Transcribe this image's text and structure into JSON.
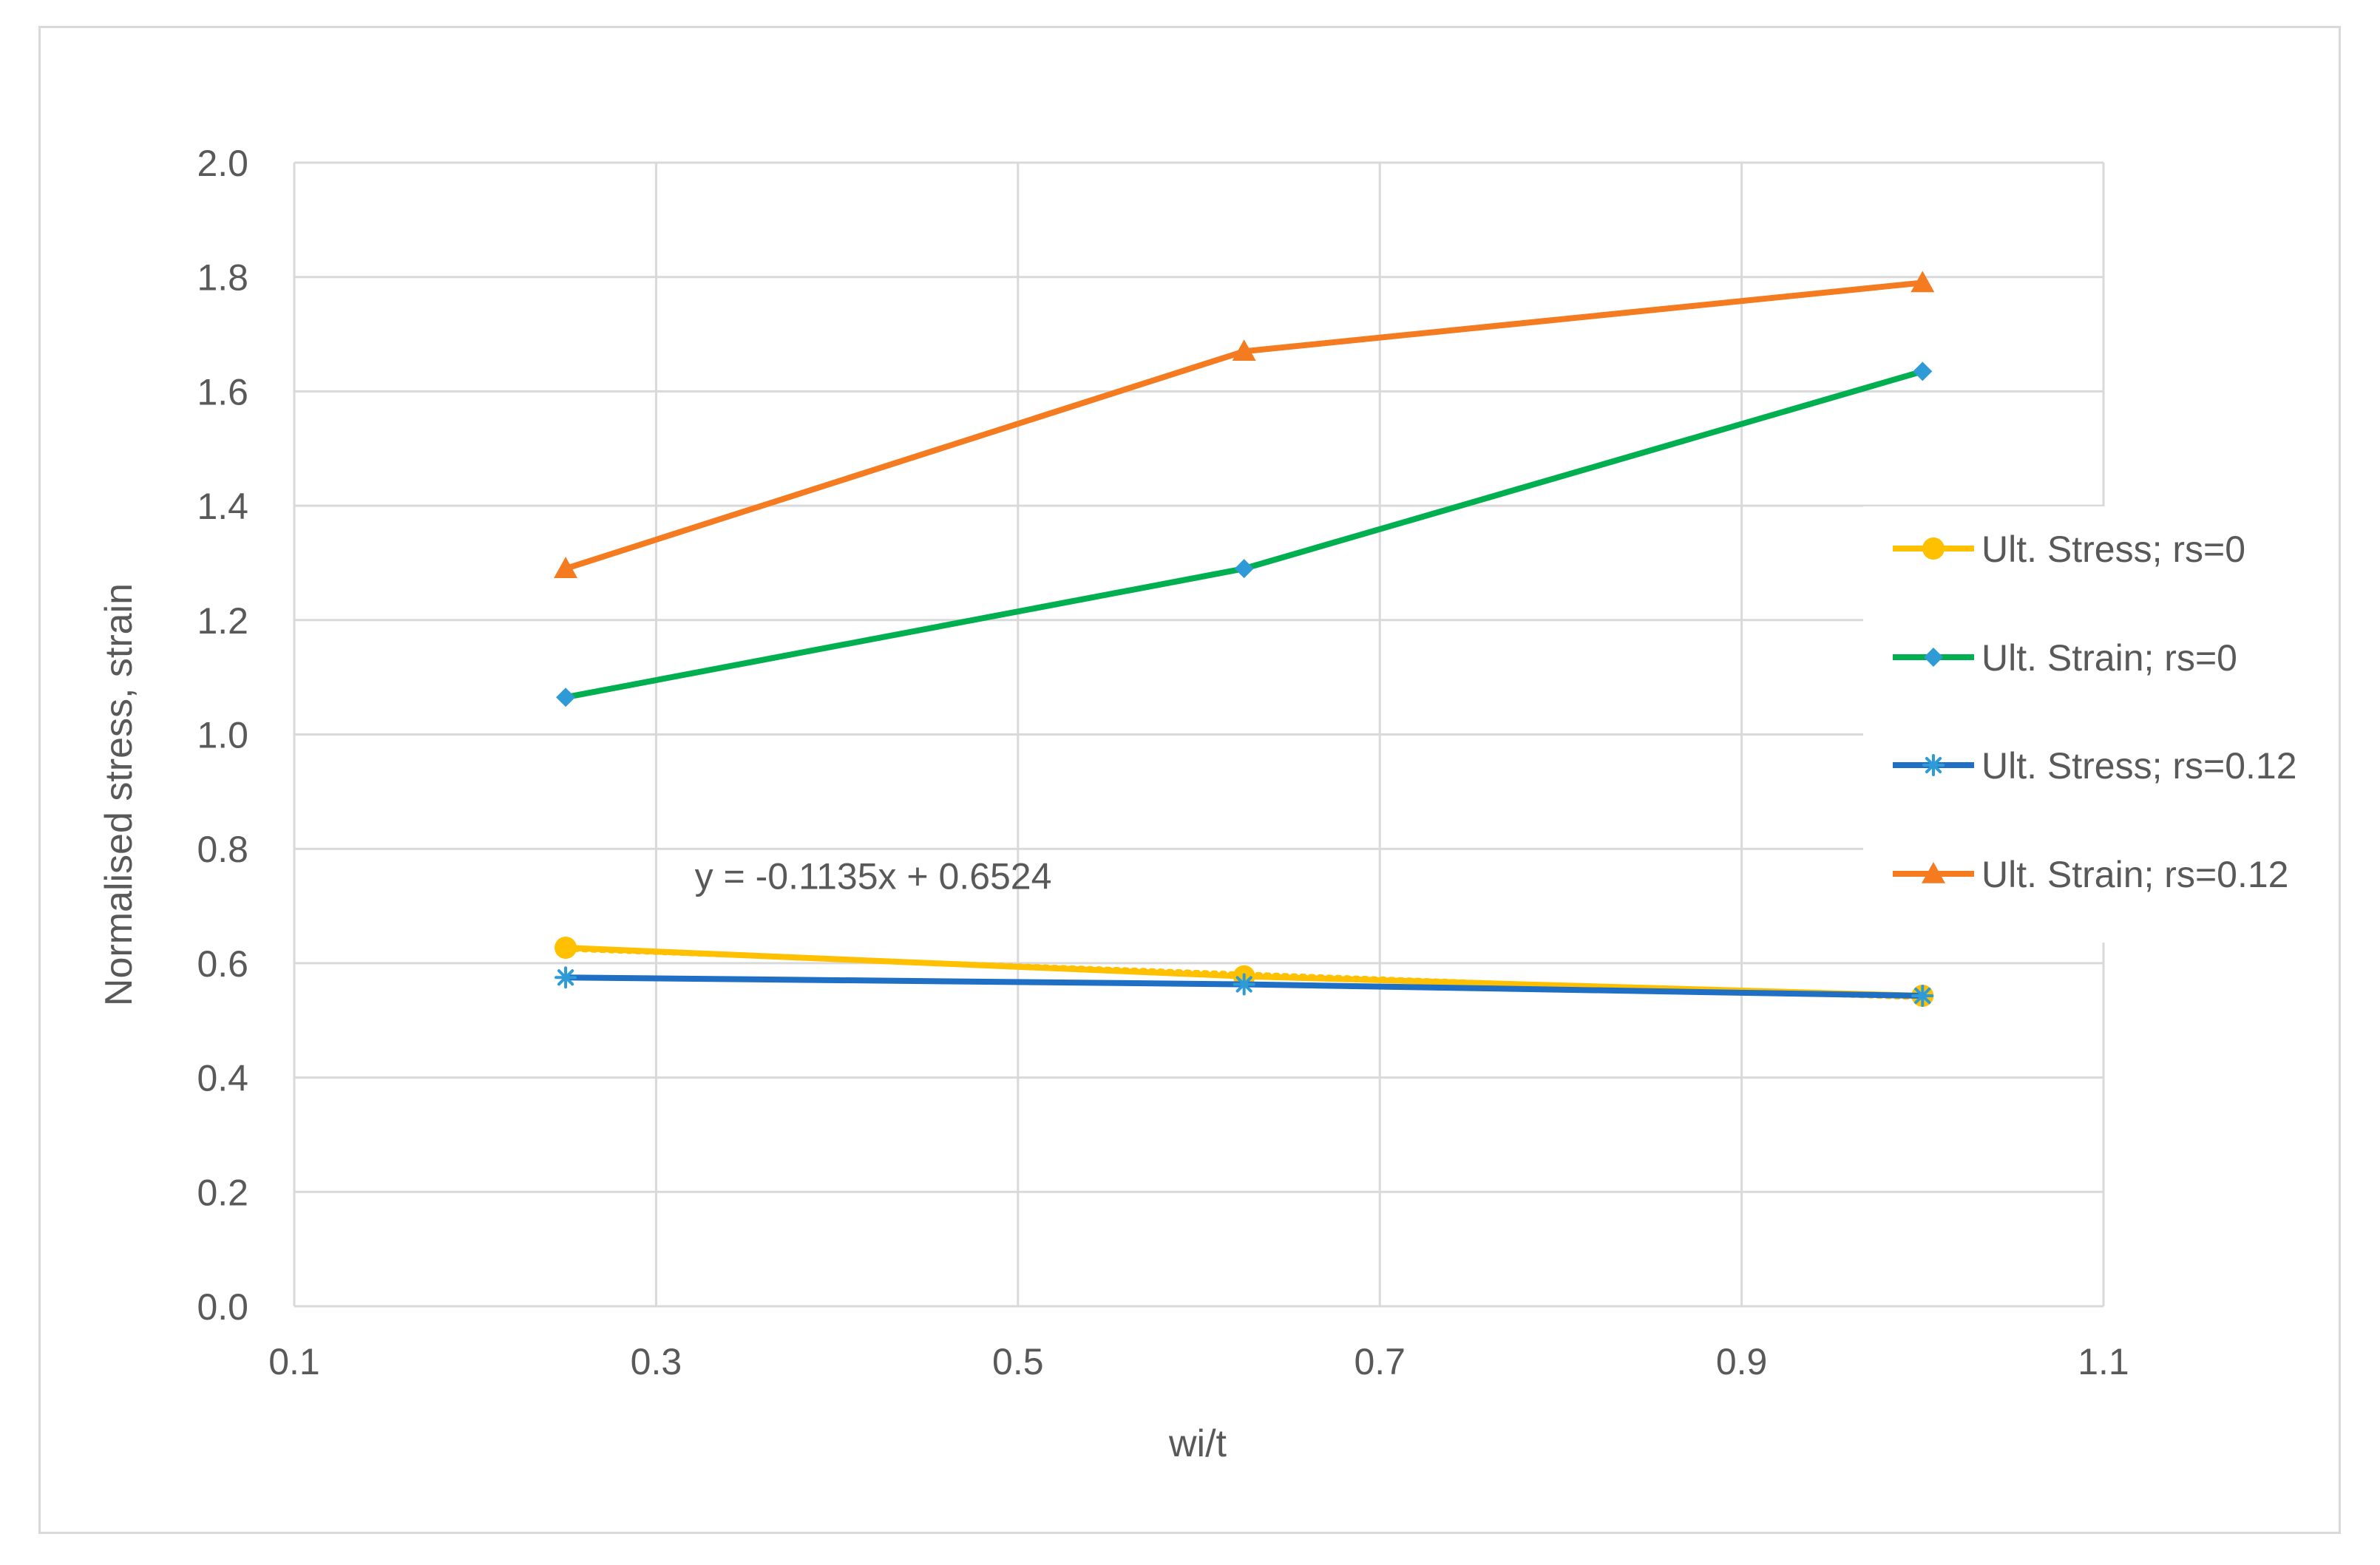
{
  "chart_data": {
    "type": "line",
    "title": "",
    "xlabel": "wi/t",
    "ylabel": "Normalised stress, strain",
    "xlim": [
      0.1,
      1.1
    ],
    "ylim": [
      0.0,
      2.0
    ],
    "x_ticks": [
      "0.1",
      "0.3",
      "0.5",
      "0.7",
      "0.9",
      "1.1"
    ],
    "y_ticks": [
      "0.0",
      "0.2",
      "0.4",
      "0.6",
      "0.8",
      "1.0",
      "1.2",
      "1.4",
      "1.6",
      "1.8",
      "2.0"
    ],
    "grid": true,
    "legend_position": "right",
    "series": [
      {
        "name": "Ult. Stress; rs=0",
        "color": "#FFC000",
        "marker": "circle",
        "x": [
          0.25,
          0.625,
          1.0
        ],
        "y": [
          0.627,
          0.577,
          0.543
        ]
      },
      {
        "name": "Ult. Strain; rs=0",
        "color": "#00B050",
        "marker_color": "#2E9BD6",
        "marker": "diamond",
        "x": [
          0.25,
          0.625,
          1.0
        ],
        "y": [
          1.065,
          1.29,
          1.635
        ]
      },
      {
        "name": "Ult. Stress; rs=0.12",
        "color": "#1F6FC5",
        "marker_color": "#2E9BD6",
        "marker": "asterisk",
        "x": [
          0.25,
          0.625,
          1.0
        ],
        "y": [
          0.575,
          0.563,
          0.543
        ]
      },
      {
        "name": "Ult. Strain; rs=0.12",
        "color": "#F47B20",
        "marker": "triangle",
        "x": [
          0.25,
          0.625,
          1.0
        ],
        "y": [
          1.29,
          1.67,
          1.79
        ]
      }
    ],
    "trendline": {
      "series": "Ult. Stress; rs=0",
      "slope": -0.1135,
      "intercept": 0.6524,
      "color": "#FFC000",
      "style": "dotted"
    },
    "annotations": [
      {
        "text": "y = -0.1135x + 0.6524",
        "x": 0.42,
        "y": 0.73
      }
    ]
  }
}
